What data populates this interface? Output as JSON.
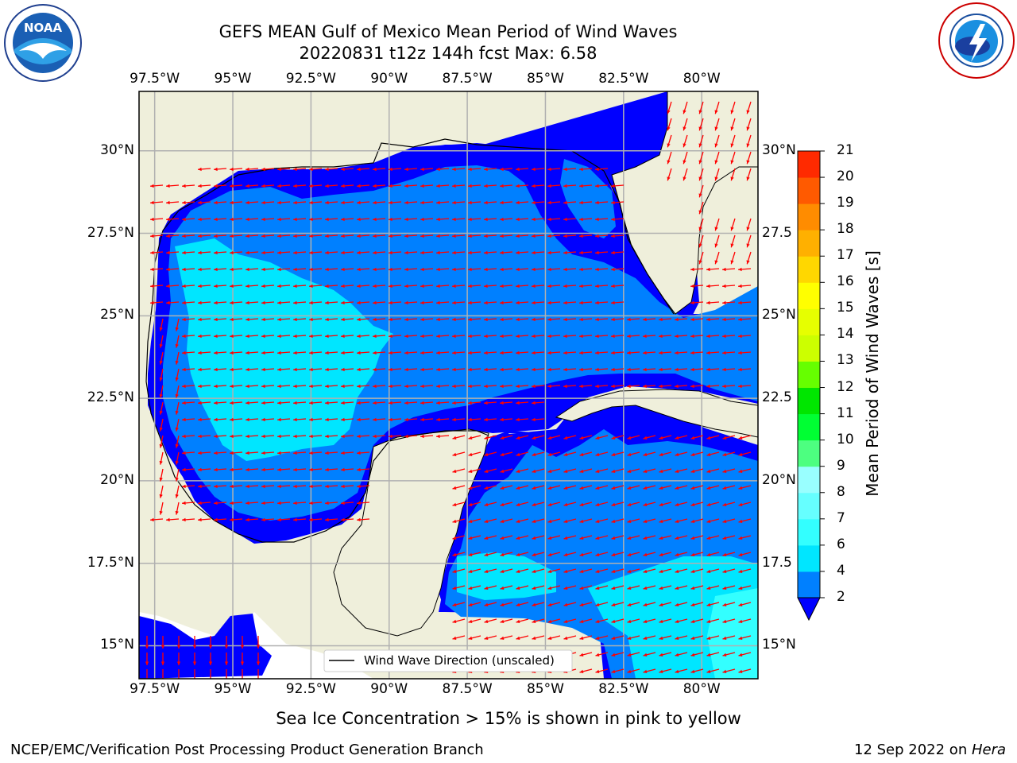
{
  "header": {
    "title_line1": "GEFS MEAN Gulf of Mexico Mean Period of Wind Waves",
    "title_line2": "20220831 t12z 144h fcst   Max: 6.58"
  },
  "logos": {
    "left": "NOAA",
    "left_ring_text": "NATIONAL OCEANIC AND ATMOSPHERIC ADMINISTRATION · U.S. DEPARTMENT OF COMMERCE",
    "right_ring_text": "NATIONAL WEATHER SERVICE"
  },
  "legend": {
    "label": "Wind Wave Direction (unscaled)"
  },
  "footer": {
    "note": "Sea Ice Concentration > 15% is shown in pink to yellow",
    "credit": "NCEP/EMC/Verification Post Processing Product Generation Branch",
    "date": "12 Sep 2022 on ",
    "host": "Hera"
  },
  "chart_data": {
    "type": "heatmap",
    "title": "GEFS MEAN Gulf of Mexico Mean Period of Wind Waves",
    "subtitle": "20220831 t12z 144h fcst   Max: 6.58",
    "x_ticks": [
      "97.5°W",
      "95°W",
      "92.5°W",
      "90°W",
      "87.5°W",
      "85°W",
      "82.5°W",
      "80°W"
    ],
    "x_tick_values": [
      -97.5,
      -95,
      -92.5,
      -90,
      -87.5,
      -85,
      -82.5,
      -80
    ],
    "y_ticks_left": [
      "30°N",
      "27.5°N",
      "25°N",
      "22.5°N",
      "20°N",
      "17.5°N",
      "15°N"
    ],
    "y_ticks_right": [
      "30°N",
      "27.5",
      "25°N",
      "22.5",
      "20°N",
      "17.5",
      "15°N"
    ],
    "y_tick_values": [
      30,
      27.5,
      25,
      22.5,
      20,
      17.5,
      15
    ],
    "xlim": [
      -98,
      -78.2
    ],
    "ylim": [
      14,
      31.8
    ],
    "grid": true,
    "colorbar": {
      "label": "Mean Period of Wind Waves [s]",
      "ticks": [
        "2",
        "4",
        "6",
        "7",
        "8",
        "9",
        "10",
        "11",
        "12",
        "13",
        "14",
        "15",
        "16",
        "17",
        "18",
        "19",
        "20",
        "21"
      ],
      "tick_values": [
        2,
        4,
        6,
        7,
        8,
        9,
        10,
        11,
        12,
        13,
        14,
        15,
        16,
        17,
        18,
        19,
        20,
        21
      ],
      "colors": [
        "#0080ff",
        "#00e6ff",
        "#33ffff",
        "#66ffff",
        "#99ffff",
        "#4dff80",
        "#00ff33",
        "#00e600",
        "#66ff00",
        "#ccff00",
        "#e6ff00",
        "#ffff00",
        "#ffd700",
        "#ffb000",
        "#ff8c00",
        "#ff5a00",
        "#ff2a00"
      ],
      "under_color": "#0000ff",
      "extend": "min"
    },
    "land_color": "#efefdb",
    "wave_classes": {
      "under_2": "#0000ff",
      "2_to_4": "#0080ff",
      "4_to_6": "#00e6ff",
      "6_to_7": "#33ffff"
    },
    "max_value": 6.58,
    "arrow_color": "#ff0000",
    "arrow_direction": "mostly westward, turning southward near east coast"
  }
}
